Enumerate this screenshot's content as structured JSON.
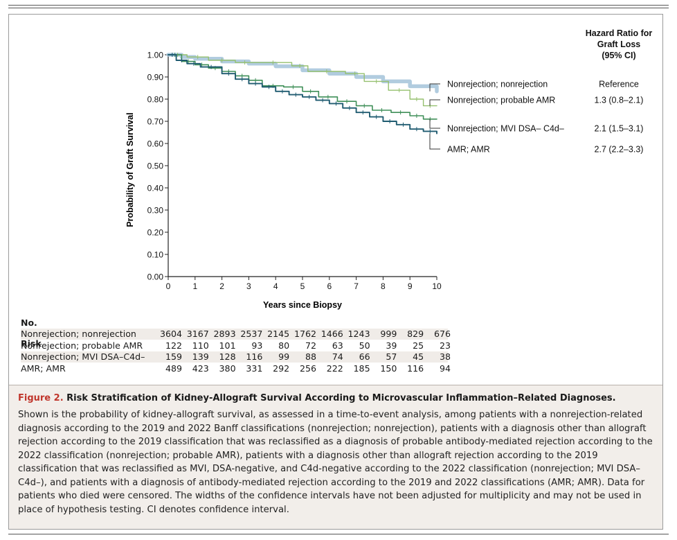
{
  "chart_data": {
    "type": "line",
    "title": "",
    "xlabel": "Years since Biopsy",
    "ylabel": "Probability of Graft Survival",
    "xlim": [
      0,
      10
    ],
    "ylim": [
      0,
      1
    ],
    "x_ticks": [
      "0",
      "1",
      "2",
      "3",
      "4",
      "5",
      "6",
      "7",
      "8",
      "9",
      "10"
    ],
    "y_ticks": [
      "0.00",
      "0.10",
      "0.20",
      "0.30",
      "0.40",
      "0.50",
      "0.60",
      "0.70",
      "0.80",
      "0.90",
      "1.00"
    ],
    "grid": false,
    "hr_header": "Hazard Ratio for Graft Loss (95% CI)",
    "series": [
      {
        "name": "Nonrejection; nonrejection",
        "hr": "Reference",
        "color": "#a9c6dc",
        "points": [
          [
            0,
            1.0
          ],
          [
            0.5,
            0.99
          ],
          [
            1,
            0.982
          ],
          [
            2,
            0.97
          ],
          [
            3,
            0.96
          ],
          [
            4,
            0.948
          ],
          [
            5,
            0.93
          ],
          [
            6,
            0.915
          ],
          [
            7,
            0.9
          ],
          [
            8,
            0.88
          ],
          [
            9,
            0.858
          ],
          [
            10,
            0.835
          ]
        ]
      },
      {
        "name": "Nonrejection; probable AMR",
        "hr": "1.3 (0.8–2.1)",
        "color": "#95c06f",
        "points": [
          [
            0,
            1.0
          ],
          [
            0.7,
            0.99
          ],
          [
            1.5,
            0.975
          ],
          [
            2.5,
            0.965
          ],
          [
            3.2,
            0.965
          ],
          [
            4.6,
            0.95
          ],
          [
            5.2,
            0.925
          ],
          [
            6.6,
            0.915
          ],
          [
            7.3,
            0.88
          ],
          [
            8.2,
            0.84
          ],
          [
            9,
            0.8
          ],
          [
            9.5,
            0.77
          ],
          [
            10,
            0.77
          ]
        ]
      },
      {
        "name": "Nonrejection; MVI DSA– C4d–",
        "hr": "2.1 (1.5–3.1)",
        "color": "#3f8f58",
        "points": [
          [
            0,
            1.0
          ],
          [
            0.5,
            0.97
          ],
          [
            1,
            0.955
          ],
          [
            1.5,
            0.94
          ],
          [
            2,
            0.925
          ],
          [
            2.5,
            0.905
          ],
          [
            3,
            0.885
          ],
          [
            3.5,
            0.86
          ],
          [
            4.3,
            0.855
          ],
          [
            5,
            0.835
          ],
          [
            5.6,
            0.81
          ],
          [
            6.3,
            0.79
          ],
          [
            7,
            0.77
          ],
          [
            7.6,
            0.75
          ],
          [
            8.3,
            0.74
          ],
          [
            9,
            0.725
          ],
          [
            9.5,
            0.71
          ],
          [
            10,
            0.71
          ]
        ]
      },
      {
        "name": "AMR; AMR",
        "hr": "2.7 (2.2–3.3)",
        "color": "#1f5b70",
        "points": [
          [
            0,
            1.0
          ],
          [
            0.3,
            0.975
          ],
          [
            0.7,
            0.96
          ],
          [
            1.2,
            0.945
          ],
          [
            2,
            0.915
          ],
          [
            2.5,
            0.89
          ],
          [
            3,
            0.87
          ],
          [
            3.5,
            0.855
          ],
          [
            4,
            0.835
          ],
          [
            4.5,
            0.82
          ],
          [
            5,
            0.81
          ],
          [
            5.5,
            0.795
          ],
          [
            6,
            0.78
          ],
          [
            6.5,
            0.76
          ],
          [
            7,
            0.74
          ],
          [
            7.5,
            0.72
          ],
          [
            8,
            0.7
          ],
          [
            8.5,
            0.685
          ],
          [
            9,
            0.665
          ],
          [
            9.5,
            0.655
          ],
          [
            10,
            0.645
          ]
        ]
      }
    ],
    "risk_table": {
      "title": "No. at Risk",
      "rows": [
        {
          "label": "Nonrejection; nonrejection",
          "values": [
            "3604",
            "3167",
            "2893",
            "2537",
            "2145",
            "1762",
            "1466",
            "1243",
            "999",
            "829",
            "676"
          ]
        },
        {
          "label": "Nonrejection; probable AMR",
          "values": [
            "122",
            "110",
            "101",
            "93",
            "80",
            "72",
            "63",
            "50",
            "39",
            "25",
            "23"
          ]
        },
        {
          "label": "Nonrejection; MVI DSA–C4d–",
          "values": [
            "159",
            "139",
            "128",
            "116",
            "99",
            "88",
            "74",
            "66",
            "57",
            "45",
            "38"
          ]
        },
        {
          "label": "AMR; AMR",
          "values": [
            "489",
            "423",
            "380",
            "331",
            "292",
            "256",
            "222",
            "185",
            "150",
            "116",
            "94"
          ]
        }
      ]
    }
  },
  "caption": {
    "figure_label": "Figure 2.",
    "title": "Risk Stratification of Kidney-Allograft Survival According to Microvascular Inflammation–Related Diagnoses.",
    "body": "Shown is the probability of kidney-allograft survival, as assessed in a time-to-event analysis, among patients with a nonrejection-related diagnosis according to the 2019 and 2022 Banff classifications (nonrejection; nonrejection), patients with a diagnosis other than allograft rejection according to the 2019 classification that was reclassified as a diagnosis of probable antibody-mediated rejection according to the 2022 classification (nonrejection; probable AMR), patients with a diagnosis other than allograft rejection according to the 2019 classification that was reclassified as MVI, DSA-negative, and C4d-negative according to the 2022 classification (nonrejection; MVI DSA– C4d–), and patients with a diagnosis of antibody-mediated rejection according to the 2019 and 2022 classifications (AMR; AMR). Data for patients who died were censored. The widths of the confidence intervals have not been adjusted for multiplicity and may not be used in place of hypothesis testing. CI denotes confidence interval."
  }
}
